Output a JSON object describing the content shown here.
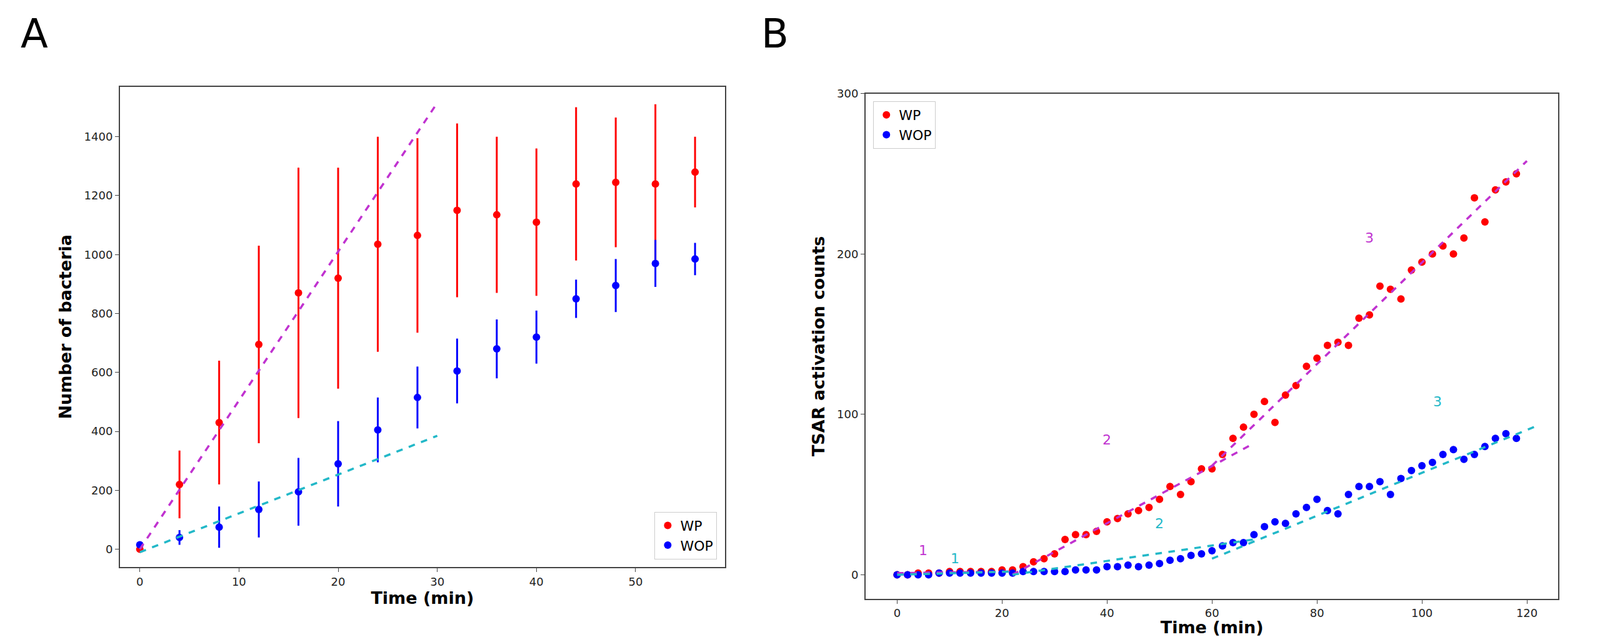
{
  "chart_data": [
    {
      "type": "scatter",
      "title": "A",
      "x_label": "Time (min)",
      "y_label": "Number of bacteria",
      "xlim": [
        -2,
        59
      ],
      "xticks": [
        0,
        10,
        20,
        30,
        40,
        50
      ],
      "ylim": [
        -60,
        1570
      ],
      "yticks": [
        0,
        200,
        400,
        600,
        800,
        1000,
        1200,
        1400
      ],
      "grid": false,
      "legend": "lower right",
      "series": [
        {
          "name": "WP",
          "color": "#ff0000",
          "marker": "circle",
          "x": [
            0,
            4,
            8,
            12,
            16,
            20,
            24,
            28,
            32,
            36,
            40,
            44,
            48,
            52,
            56
          ],
          "values": [
            0,
            220,
            430,
            695,
            870,
            920,
            1035,
            1065,
            1150,
            1135,
            1110,
            1240,
            1245,
            1240,
            1280
          ],
          "errors": [
            0,
            115,
            210,
            335,
            425,
            375,
            365,
            330,
            295,
            265,
            250,
            260,
            220,
            270,
            120
          ]
        },
        {
          "name": "WOP",
          "color": "#0000ff",
          "marker": "circle",
          "x": [
            0,
            4,
            8,
            12,
            16,
            20,
            24,
            28,
            32,
            36,
            40,
            44,
            48,
            52,
            56
          ],
          "values": [
            15,
            40,
            75,
            135,
            195,
            290,
            405,
            515,
            605,
            680,
            720,
            850,
            895,
            970,
            985
          ],
          "errors": [
            10,
            25,
            70,
            95,
            115,
            145,
            110,
            105,
            110,
            100,
            90,
            65,
            90,
            80,
            55
          ]
        },
        {
          "type": "line",
          "line_style": "dashed",
          "color": "#c032d0",
          "x": [
            0,
            30
          ],
          "values": [
            0,
            1515
          ]
        },
        {
          "type": "line",
          "line_style": "dashed",
          "color": "#22b8c8",
          "x": [
            0,
            30
          ],
          "values": [
            -10,
            385
          ]
        }
      ]
    },
    {
      "type": "scatter",
      "title": "B",
      "x_label": "Time (min)",
      "y_label": "TSAR activation counts",
      "xlim": [
        -6,
        126
      ],
      "xticks": [
        0,
        20,
        40,
        60,
        80,
        100,
        120
      ],
      "ylim": [
        -15,
        300
      ],
      "yticks": [
        0,
        100,
        200,
        300
      ],
      "grid": false,
      "legend": "upper left",
      "series": [
        {
          "name": "WP",
          "color": "#ff0000",
          "marker": "circle",
          "x": [
            0,
            2,
            4,
            6,
            8,
            10,
            12,
            14,
            16,
            18,
            20,
            22,
            24,
            26,
            28,
            30,
            32,
            34,
            36,
            38,
            40,
            42,
            44,
            46,
            48,
            50,
            52,
            54,
            56,
            58,
            60,
            62,
            64,
            66,
            68,
            70,
            72,
            74,
            76,
            78,
            80,
            82,
            84,
            86,
            88,
            90,
            92,
            94,
            96,
            98,
            100,
            102,
            104,
            106,
            108,
            110,
            112,
            114,
            116,
            118
          ],
          "values": [
            0,
            0,
            1,
            1,
            1,
            2,
            2,
            2,
            2,
            2,
            3,
            3,
            5,
            8,
            10,
            13,
            22,
            25,
            25,
            27,
            33,
            35,
            38,
            40,
            42,
            47,
            55,
            50,
            58,
            66,
            66,
            75,
            85,
            92,
            100,
            108,
            95,
            112,
            118,
            130,
            135,
            143,
            145,
            143,
            160,
            162,
            180,
            178,
            172,
            190,
            195,
            200,
            205,
            200,
            210,
            235,
            220,
            240,
            245,
            250
          ]
        },
        {
          "name": "WOP",
          "color": "#0000ff",
          "marker": "circle",
          "x": [
            0,
            2,
            4,
            6,
            8,
            10,
            12,
            14,
            16,
            18,
            20,
            22,
            24,
            26,
            28,
            30,
            32,
            34,
            36,
            38,
            40,
            42,
            44,
            46,
            48,
            50,
            52,
            54,
            56,
            58,
            60,
            62,
            64,
            66,
            68,
            70,
            72,
            74,
            76,
            78,
            80,
            82,
            84,
            86,
            88,
            90,
            92,
            94,
            96,
            98,
            100,
            102,
            104,
            106,
            108,
            110,
            112,
            114,
            116,
            118
          ],
          "values": [
            0,
            0,
            0,
            0,
            1,
            1,
            1,
            1,
            1,
            1,
            1,
            1,
            2,
            2,
            2,
            2,
            2,
            3,
            3,
            3,
            5,
            5,
            6,
            5,
            6,
            7,
            9,
            10,
            12,
            13,
            15,
            18,
            20,
            20,
            25,
            30,
            33,
            32,
            38,
            42,
            47,
            40,
            38,
            50,
            55,
            55,
            58,
            50,
            60,
            65,
            68,
            70,
            75,
            78,
            72,
            75,
            80,
            85,
            88,
            85
          ]
        },
        {
          "type": "line",
          "line_style": "dashed",
          "color": "#c032d0",
          "x": [
            0,
            22
          ],
          "values": [
            1,
            2
          ]
        },
        {
          "type": "line",
          "line_style": "dashed",
          "color": "#c032d0",
          "x": [
            22,
            68
          ],
          "values": [
            0,
            82
          ]
        },
        {
          "type": "line",
          "line_style": "dashed",
          "color": "#c032d0",
          "x": [
            60,
            120
          ],
          "values": [
            68,
            258
          ]
        },
        {
          "type": "line",
          "line_style": "dashed",
          "color": "#22b8c8",
          "x": [
            0,
            22
          ],
          "values": [
            0,
            2
          ]
        },
        {
          "type": "line",
          "line_style": "dashed",
          "color": "#22b8c8",
          "x": [
            22,
            68
          ],
          "values": [
            0,
            22
          ]
        },
        {
          "type": "line",
          "line_style": "dashed",
          "color": "#22b8c8",
          "x": [
            60,
            122
          ],
          "values": [
            10,
            93
          ]
        }
      ],
      "annotations": [
        {
          "text": "1",
          "x": 5,
          "y": 15,
          "color": "#c032d0"
        },
        {
          "text": "2",
          "x": 40,
          "y": 84,
          "color": "#c032d0"
        },
        {
          "text": "3",
          "x": 90,
          "y": 210,
          "color": "#c032d0"
        },
        {
          "text": "1",
          "x": 11,
          "y": 10,
          "color": "#22b8c8"
        },
        {
          "text": "2",
          "x": 50,
          "y": 32,
          "color": "#22b8c8"
        },
        {
          "text": "3",
          "x": 103,
          "y": 108,
          "color": "#22b8c8"
        }
      ]
    }
  ]
}
